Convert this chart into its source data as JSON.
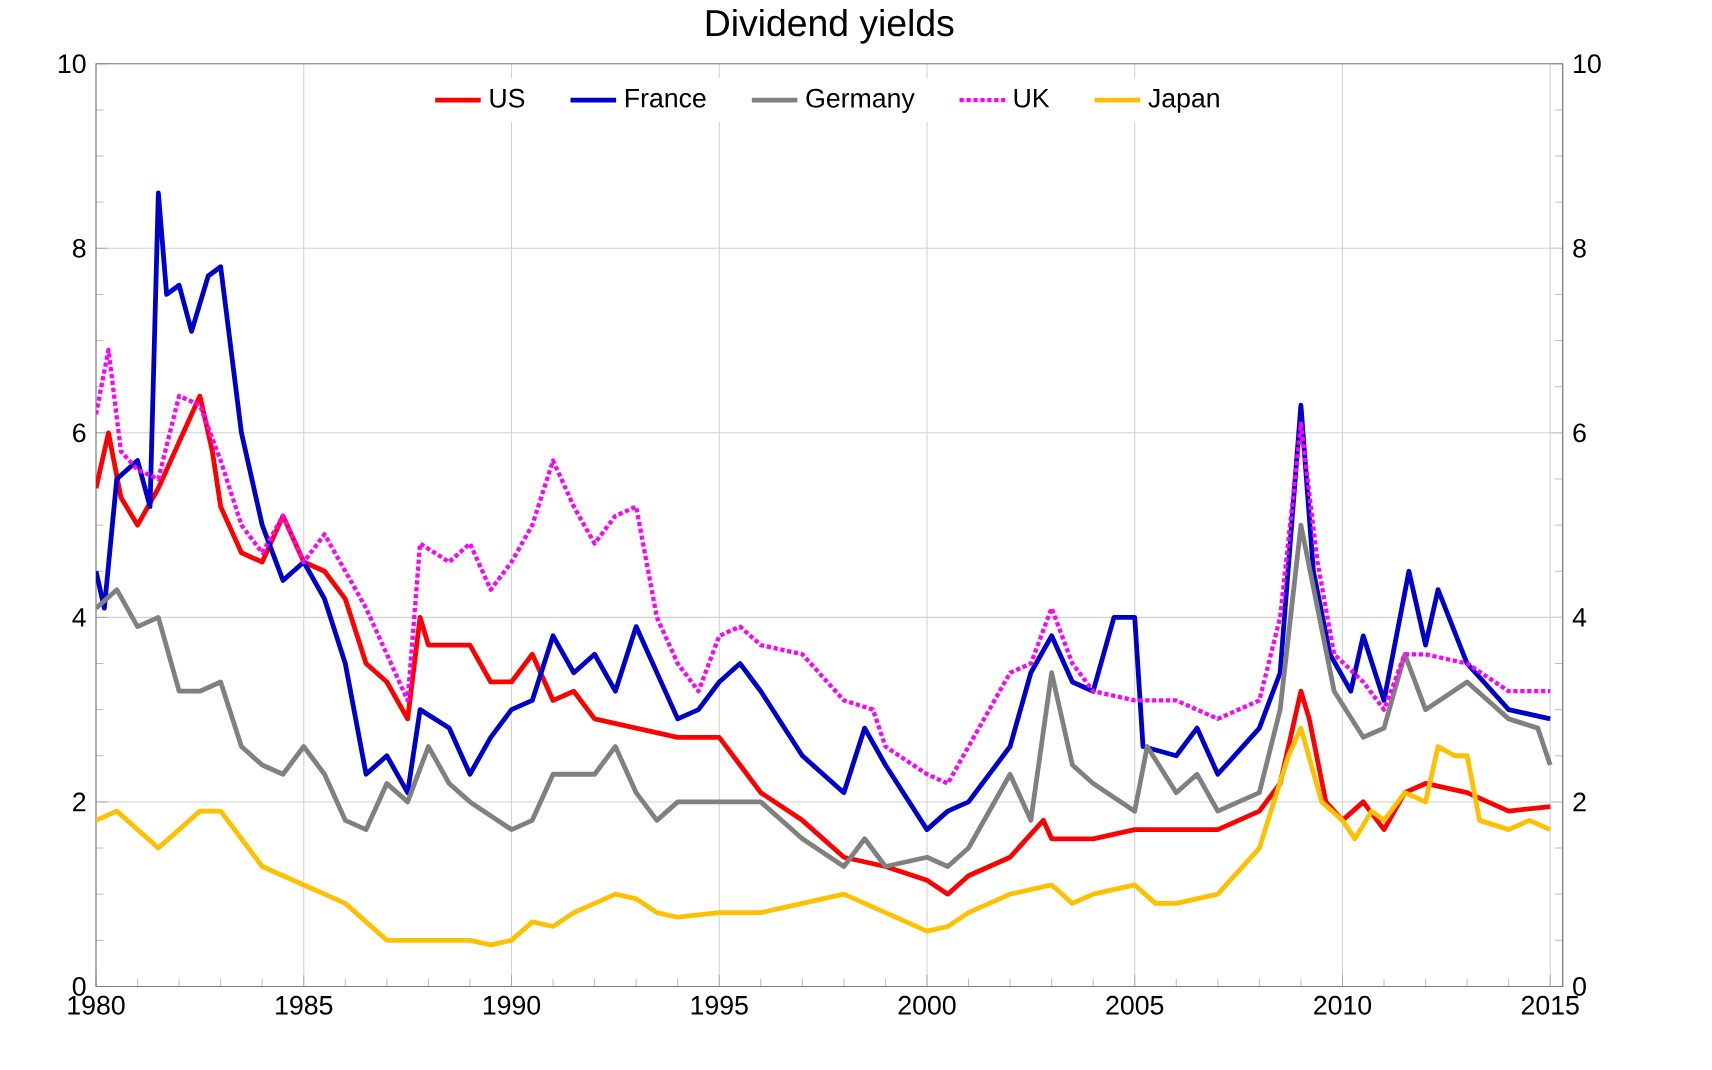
{
  "chart_data": {
    "type": "line",
    "title": "Dividend yields",
    "xlim": [
      1980,
      2015.3
    ],
    "xticks": [
      1980,
      1985,
      1990,
      1995,
      2000,
      2005,
      2010,
      2015
    ],
    "ylim": [
      0,
      10
    ],
    "yticks": [
      0,
      2,
      4,
      6,
      8,
      10
    ],
    "y2lim": [
      0,
      10
    ],
    "y2ticks": [
      0,
      2,
      4,
      6,
      8,
      10
    ],
    "grid": true,
    "legend": "top",
    "series": [
      {
        "name": "US",
        "color": "#ff0000",
        "line_style": "solid",
        "x": [
          1980,
          1980.3,
          1980.6,
          1981,
          1981.5,
          1982,
          1982.5,
          1982.8,
          1983,
          1983.5,
          1984,
          1984.5,
          1985,
          1985.5,
          1986,
          1986.5,
          1987,
          1987.5,
          1987.8,
          1988,
          1989,
          1989.5,
          1990,
          1990.5,
          1991,
          1991.5,
          1992,
          1993,
          1994,
          1995,
          1995.5,
          1996,
          1997,
          1998,
          1999,
          2000,
          2000.5,
          2001,
          2002,
          2002.8,
          2003,
          2004,
          2005,
          2006,
          2007,
          2008,
          2008.5,
          2009,
          2009.2,
          2009.6,
          2010,
          2010.5,
          2011,
          2011.5,
          2012,
          2013,
          2014,
          2015
        ],
        "values": [
          5.4,
          6.0,
          5.3,
          5.0,
          5.4,
          5.9,
          6.4,
          5.8,
          5.2,
          4.7,
          4.6,
          5.1,
          4.6,
          4.5,
          4.2,
          3.5,
          3.3,
          2.9,
          4.0,
          3.7,
          3.7,
          3.3,
          3.3,
          3.6,
          3.1,
          3.2,
          2.9,
          2.8,
          2.7,
          2.7,
          2.4,
          2.1,
          1.8,
          1.4,
          1.3,
          1.15,
          1.0,
          1.2,
          1.4,
          1.8,
          1.6,
          1.6,
          1.7,
          1.7,
          1.7,
          1.9,
          2.2,
          3.2,
          2.9,
          2.0,
          1.8,
          2.0,
          1.7,
          2.1,
          2.2,
          2.1,
          1.9,
          1.95
        ]
      },
      {
        "name": "France",
        "color": "#0000cc",
        "line_style": "solid",
        "x": [
          1980,
          1980.2,
          1980.5,
          1981,
          1981.3,
          1981.5,
          1981.7,
          1982,
          1982.3,
          1982.7,
          1983,
          1983.5,
          1984,
          1984.5,
          1985,
          1985.5,
          1986,
          1986.5,
          1987,
          1987.5,
          1987.8,
          1988.5,
          1989,
          1989.5,
          1990,
          1990.5,
          1991,
          1991.5,
          1992,
          1992.5,
          1993,
          1993.5,
          1994,
          1994.5,
          1995,
          1995.5,
          1996,
          1997,
          1998,
          1998.5,
          1999,
          2000,
          2000.5,
          2001,
          2002,
          2002.5,
          2003,
          2003.5,
          2004,
          2004.5,
          2005,
          2005.2,
          2006,
          2006.5,
          2007,
          2008,
          2008.5,
          2009,
          2009.3,
          2009.7,
          2010.2,
          2010.5,
          2011,
          2011.6,
          2012,
          2012.3,
          2013,
          2014,
          2015
        ],
        "values": [
          4.5,
          4.1,
          5.5,
          5.7,
          5.2,
          8.6,
          7.5,
          7.6,
          7.1,
          7.7,
          7.8,
          6.0,
          5.0,
          4.4,
          4.6,
          4.2,
          3.5,
          2.3,
          2.5,
          2.1,
          3.0,
          2.8,
          2.3,
          2.7,
          3.0,
          3.1,
          3.8,
          3.4,
          3.6,
          3.2,
          3.9,
          3.4,
          2.9,
          3.0,
          3.3,
          3.5,
          3.2,
          2.5,
          2.1,
          2.8,
          2.4,
          1.7,
          1.9,
          2.0,
          2.6,
          3.4,
          3.8,
          3.3,
          3.2,
          4.0,
          4.0,
          2.6,
          2.5,
          2.8,
          2.3,
          2.8,
          3.4,
          6.3,
          4.5,
          3.6,
          3.2,
          3.8,
          3.1,
          4.5,
          3.7,
          4.3,
          3.5,
          3.0,
          2.9
        ]
      },
      {
        "name": "Germany",
        "color": "#808080",
        "line_style": "solid",
        "x": [
          1980,
          1980.5,
          1981,
          1981.5,
          1982,
          1982.5,
          1983,
          1983.5,
          1984,
          1984.5,
          1985,
          1985.5,
          1986,
          1986.5,
          1987,
          1987.5,
          1988,
          1988.5,
          1989,
          1990,
          1990.5,
          1991,
          1992,
          1992.5,
          1993,
          1993.5,
          1994,
          1995,
          1996,
          1997,
          1998,
          1998.5,
          1999,
          2000,
          2000.5,
          2001,
          2002,
          2002.5,
          2003,
          2003.5,
          2004,
          2005,
          2005.3,
          2006,
          2006.5,
          2007,
          2008,
          2008.5,
          2009,
          2009.4,
          2009.8,
          2010.5,
          2011,
          2011.5,
          2012,
          2013,
          2014,
          2014.7,
          2015
        ],
        "values": [
          4.1,
          4.3,
          3.9,
          4.0,
          3.2,
          3.2,
          3.3,
          2.6,
          2.4,
          2.3,
          2.6,
          2.3,
          1.8,
          1.7,
          2.2,
          2.0,
          2.6,
          2.2,
          2.0,
          1.7,
          1.8,
          2.3,
          2.3,
          2.6,
          2.1,
          1.8,
          2.0,
          2.0,
          2.0,
          1.6,
          1.3,
          1.6,
          1.3,
          1.4,
          1.3,
          1.5,
          2.3,
          1.8,
          3.4,
          2.4,
          2.2,
          1.9,
          2.6,
          2.1,
          2.3,
          1.9,
          2.1,
          3.0,
          5.0,
          4.1,
          3.2,
          2.7,
          2.8,
          3.6,
          3.0,
          3.3,
          2.9,
          2.8,
          2.4
        ]
      },
      {
        "name": "UK",
        "color": "#ff00ff",
        "line_style": "dotted",
        "x": [
          1980,
          1980.3,
          1980.6,
          1981,
          1981.5,
          1982,
          1982.5,
          1983,
          1983.5,
          1984,
          1984.5,
          1985,
          1985.5,
          1986,
          1986.5,
          1987,
          1987.5,
          1987.8,
          1988.5,
          1989,
          1989.5,
          1990,
          1990.5,
          1991,
          1991.5,
          1992,
          1992.5,
          1993,
          1993.5,
          1994,
          1994.5,
          1995,
          1995.5,
          1996,
          1997,
          1998,
          1998.7,
          1999,
          2000,
          2000.5,
          2001,
          2002,
          2002.5,
          2003,
          2003.5,
          2004,
          2005,
          2006,
          2007,
          2008,
          2008.5,
          2009,
          2009.4,
          2009.8,
          2010.5,
          2011,
          2011.5,
          2012,
          2013,
          2014,
          2015
        ],
        "values": [
          6.2,
          6.9,
          5.8,
          5.6,
          5.5,
          6.4,
          6.3,
          5.7,
          5.0,
          4.7,
          5.1,
          4.6,
          4.9,
          4.5,
          4.1,
          3.6,
          3.1,
          4.8,
          4.6,
          4.8,
          4.3,
          4.6,
          5.0,
          5.7,
          5.2,
          4.8,
          5.1,
          5.2,
          4.0,
          3.5,
          3.2,
          3.8,
          3.9,
          3.7,
          3.6,
          3.1,
          3.0,
          2.6,
          2.3,
          2.2,
          2.6,
          3.4,
          3.5,
          4.1,
          3.5,
          3.2,
          3.1,
          3.1,
          2.9,
          3.1,
          4.0,
          6.1,
          4.6,
          3.6,
          3.3,
          3.0,
          3.6,
          3.6,
          3.5,
          3.2,
          3.2
        ]
      },
      {
        "name": "Japan",
        "color": "#ffc000",
        "line_style": "solid",
        "x": [
          1980,
          1980.5,
          1981,
          1981.5,
          1982,
          1982.5,
          1983,
          1983.5,
          1984,
          1984.5,
          1985,
          1985.5,
          1986,
          1986.5,
          1987,
          1988,
          1989,
          1989.5,
          1990,
          1990.5,
          1991,
          1991.5,
          1992,
          1992.5,
          1993,
          1993.5,
          1994,
          1995,
          1996,
          1997,
          1998,
          1999,
          2000,
          2000.5,
          2001,
          2002,
          2003,
          2003.5,
          2004,
          2005,
          2005.5,
          2006,
          2007,
          2008,
          2008.7,
          2009,
          2009.5,
          2010,
          2010.3,
          2010.7,
          2011,
          2011.5,
          2012,
          2012.3,
          2012.7,
          2013,
          2013.3,
          2014,
          2014.5,
          2015
        ],
        "values": [
          1.8,
          1.9,
          1.7,
          1.5,
          1.7,
          1.9,
          1.9,
          1.6,
          1.3,
          1.2,
          1.1,
          1.0,
          0.9,
          0.7,
          0.5,
          0.5,
          0.5,
          0.45,
          0.5,
          0.7,
          0.65,
          0.8,
          0.9,
          1.0,
          0.95,
          0.8,
          0.75,
          0.8,
          0.8,
          0.9,
          1.0,
          0.8,
          0.6,
          0.65,
          0.8,
          1.0,
          1.1,
          0.9,
          1.0,
          1.1,
          0.9,
          0.9,
          1.0,
          1.5,
          2.5,
          2.8,
          2.0,
          1.8,
          1.6,
          1.9,
          1.8,
          2.1,
          2.0,
          2.6,
          2.5,
          2.5,
          1.8,
          1.7,
          1.8,
          1.7
        ]
      }
    ]
  }
}
